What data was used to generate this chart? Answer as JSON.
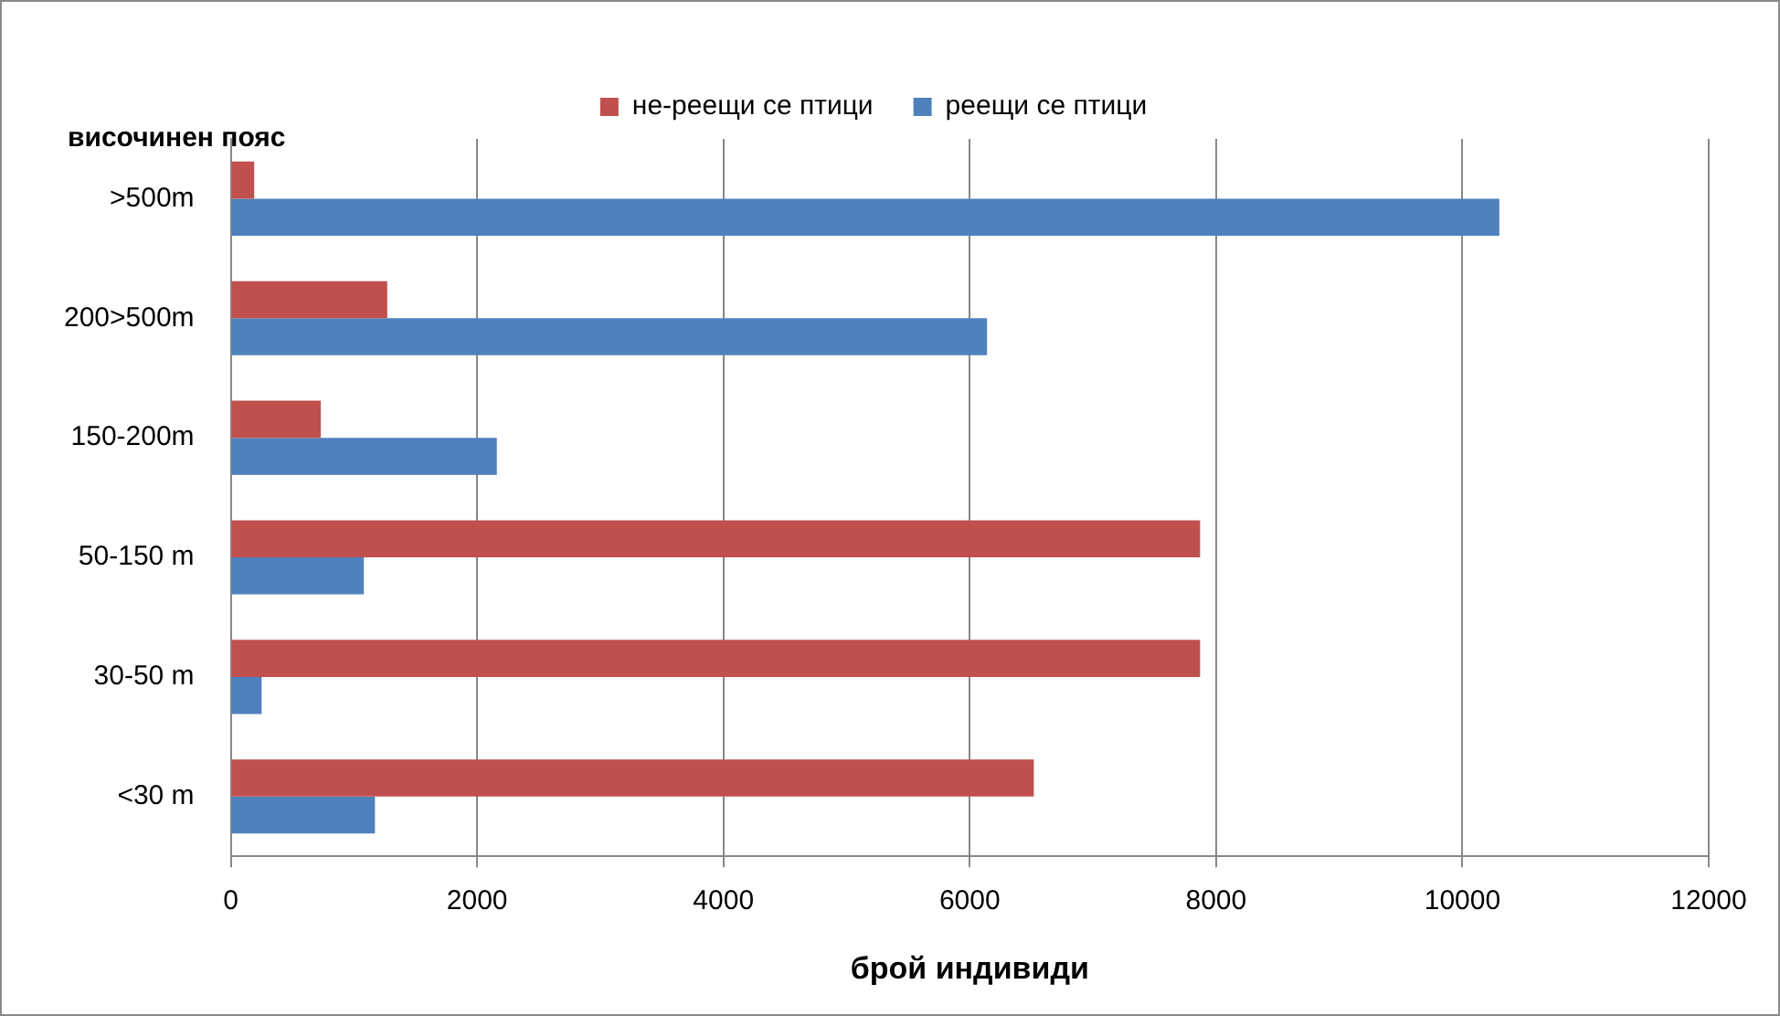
{
  "chart_data": {
    "type": "bar",
    "orientation": "horizontal",
    "xlabel": "брой индивиди",
    "ylabel": "височинен пояс",
    "categories": [
      ">500m",
      "200>500m",
      "150-200m",
      "50-150 m",
      "30-50 m",
      "<30 m"
    ],
    "series": [
      {
        "name": "не-реещи се птици",
        "color": "#c0504d",
        "values": [
          190,
          1270,
          730,
          7870,
          7870,
          6520
        ]
      },
      {
        "name": "реещи се птици",
        "color": "#4f81bd",
        "values": [
          10300,
          6140,
          2160,
          1080,
          250,
          1170
        ]
      }
    ],
    "xlim": [
      0,
      12000
    ],
    "xticks": [
      0,
      2000,
      4000,
      6000,
      8000,
      10000,
      12000
    ],
    "grid": "x",
    "legend": "top"
  }
}
